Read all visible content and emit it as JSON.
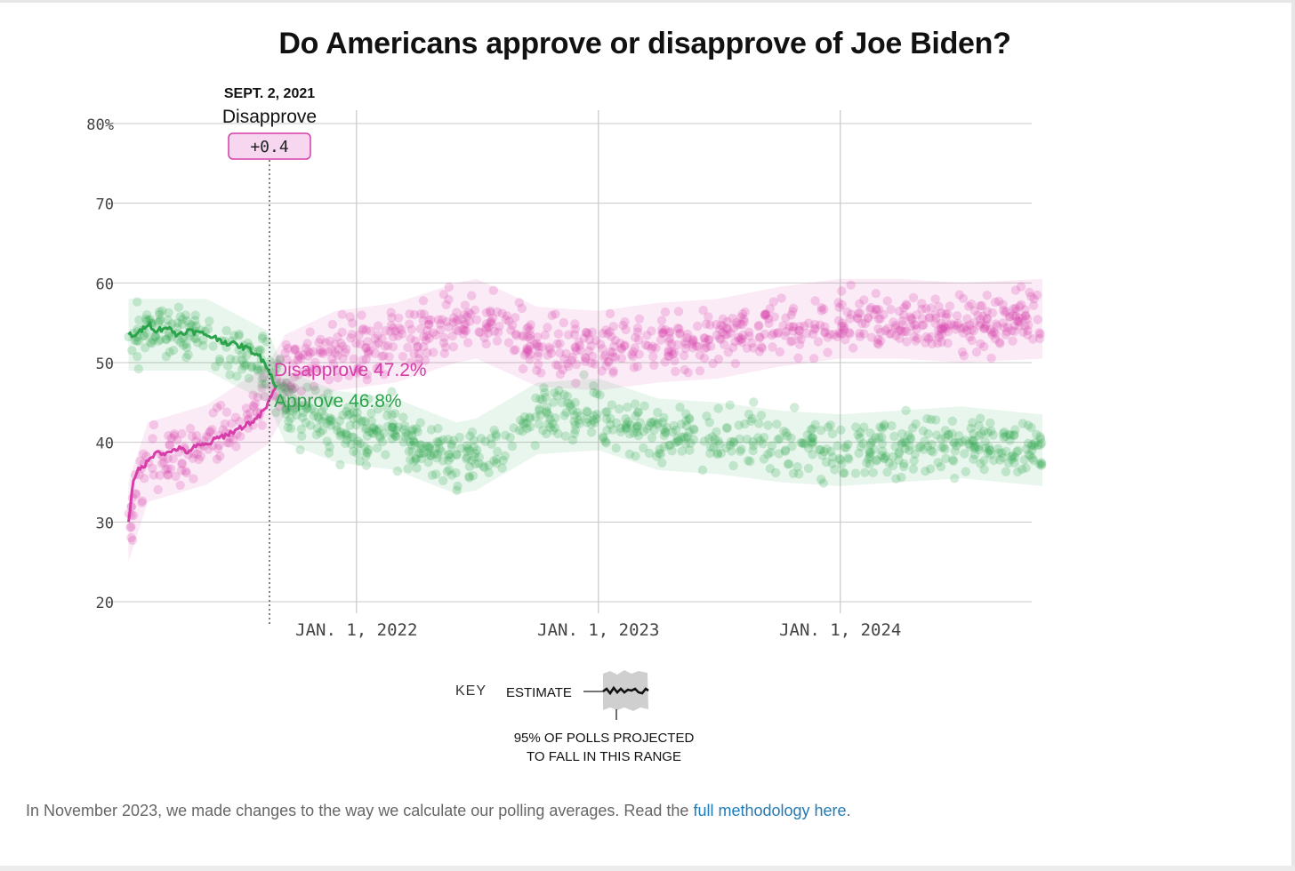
{
  "title": "Do Americans approve or disapprove of Joe Biden?",
  "colors": {
    "approve": "#2aa34b",
    "disapprove": "#d63da8",
    "grid": "#c8c8c8",
    "tooltip_bg": "#f7d7ef",
    "link": "#1f7bb6"
  },
  "tooltip": {
    "date": "SEPT. 2, 2021",
    "label": "Disapprove",
    "delta": "+0.4"
  },
  "key": {
    "title": "KEY",
    "estimate_label": "ESTIMATE",
    "note_line1": "95% OF POLLS PROJECTED",
    "note_line2": "TO FALL IN THIS RANGE"
  },
  "footnote": {
    "text": "In November 2023, we made changes to the way we calculate our polling averages. Read the ",
    "link_text": "full methodology here",
    "end": "."
  },
  "chart_data": {
    "type": "line",
    "title": "Do Americans approve or disapprove of Joe Biden?",
    "y_ticks": [
      "80%",
      "70",
      "60",
      "50",
      "40",
      "30",
      "20"
    ],
    "y_tick_values": [
      80,
      70,
      60,
      50,
      40,
      30,
      20
    ],
    "ylim": [
      20,
      80
    ],
    "x_ticks": [
      "JAN. 1, 2022",
      "JAN. 1, 2023",
      "JAN. 1, 2024"
    ],
    "x_tick_dates": [
      "2022-01-01",
      "2023-01-01",
      "2024-01-01"
    ],
    "xlim": [
      "2021-01-20",
      "2024-11-01"
    ],
    "highlight_date": "2021-09-02",
    "grid": true,
    "series": [
      {
        "name": "Disapprove",
        "end_label": "Disapprove 47.2%",
        "estimate_dates": [
          "2021-01-22",
          "2021-01-28",
          "2021-02-05",
          "2021-02-20",
          "2021-03-05",
          "2021-03-20",
          "2021-04-05",
          "2021-04-20",
          "2021-05-05",
          "2021-05-20",
          "2021-06-05",
          "2021-06-20",
          "2021-07-05",
          "2021-07-20",
          "2021-08-05",
          "2021-08-20",
          "2021-09-02"
        ],
        "estimate_values": [
          30.0,
          34.5,
          36.5,
          37.5,
          39.0,
          38.5,
          39.3,
          38.8,
          39.5,
          39.7,
          40.5,
          41.0,
          41.6,
          42.3,
          43.0,
          44.7,
          47.2
        ],
        "band_dates": [
          "2021-01-22",
          "2021-02-20",
          "2021-05-20",
          "2021-08-20",
          "2021-09-15",
          "2021-12-01",
          "2022-03-01",
          "2022-06-01",
          "2022-07-01",
          "2022-10-01",
          "2023-01-01",
          "2023-04-01",
          "2023-07-01",
          "2023-10-01",
          "2024-01-01",
          "2024-04-01",
          "2024-07-01",
          "2024-11-01"
        ],
        "band_center": [
          30.0,
          37.5,
          39.7,
          44.7,
          48.5,
          51.5,
          52.5,
          55.0,
          55.5,
          52.0,
          51.5,
          52.5,
          53.0,
          54.5,
          55.5,
          55.5,
          55.0,
          55.5
        ],
        "band_halfwidth": 5
      },
      {
        "name": "Approve",
        "end_label": "Approve 46.8%",
        "estimate_dates": [
          "2021-01-22",
          "2021-02-05",
          "2021-02-20",
          "2021-03-05",
          "2021-03-20",
          "2021-04-05",
          "2021-04-20",
          "2021-05-05",
          "2021-05-20",
          "2021-06-05",
          "2021-06-20",
          "2021-07-05",
          "2021-07-20",
          "2021-08-05",
          "2021-08-20",
          "2021-09-02"
        ],
        "estimate_values": [
          53.5,
          53.5,
          55.0,
          54.0,
          54.5,
          53.5,
          54.0,
          53.8,
          53.5,
          53.0,
          52.5,
          52.2,
          51.8,
          51.0,
          49.5,
          46.8
        ],
        "band_dates": [
          "2021-01-22",
          "2021-05-20",
          "2021-08-20",
          "2021-09-15",
          "2021-12-01",
          "2022-03-01",
          "2022-06-01",
          "2022-07-01",
          "2022-10-01",
          "2023-01-01",
          "2023-04-01",
          "2023-07-01",
          "2023-10-01",
          "2024-01-01",
          "2024-04-01",
          "2024-07-01",
          "2024-11-01"
        ],
        "band_center": [
          53.5,
          53.5,
          49.5,
          44.5,
          42.0,
          41.0,
          38.0,
          38.5,
          43.0,
          43.5,
          41.0,
          40.5,
          39.5,
          39.0,
          39.5,
          40.0,
          39.0
        ],
        "band_halfwidth": 4.5
      }
    ]
  }
}
